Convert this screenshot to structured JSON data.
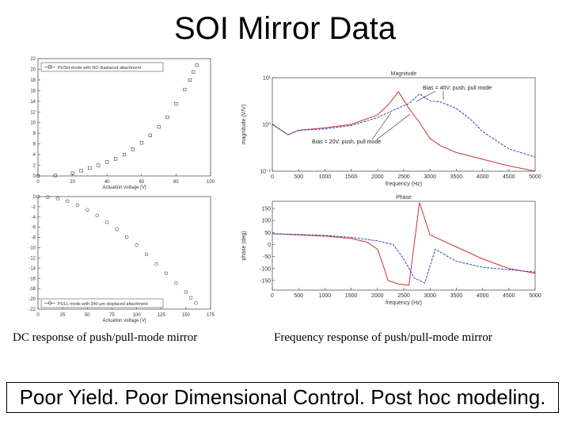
{
  "title": "SOI Mirror Data",
  "captions": {
    "left": "DC response of push/pull-mode mirror",
    "right": "Frequency response of push/pull-mode mirror"
  },
  "footer": "Poor Yield.  Poor Dimensional Control.  Post hoc modeling.",
  "chart_data": [
    {
      "type": "scatter",
      "legend": "PUSH mode with NO displaced attachment",
      "xlabel": "Actuation voltage [V]",
      "ylabel": "",
      "xlim": [
        0,
        100
      ],
      "ylim": [
        0,
        22
      ],
      "xticks": [
        0,
        20,
        40,
        60,
        80,
        100
      ],
      "yticks": [
        0,
        2,
        4,
        6,
        8,
        10,
        12,
        14,
        16,
        18,
        20,
        22
      ],
      "x": [
        0,
        10,
        20,
        25,
        30,
        35,
        40,
        45,
        50,
        55,
        60,
        65,
        70,
        75,
        80,
        85,
        88,
        90,
        92
      ],
      "y": [
        0,
        0.1,
        0.5,
        1.0,
        1.5,
        2.0,
        2.6,
        3.2,
        4.0,
        5.0,
        6.2,
        7.6,
        9.2,
        11.0,
        13.5,
        16.2,
        18.0,
        19.5,
        20.8
      ]
    },
    {
      "type": "scatter",
      "legend": "PULL mode with 340 μm displaced attachment",
      "xlabel": "Actuation voltage [V]",
      "ylabel": "",
      "xlim": [
        0,
        175
      ],
      "ylim": [
        -22,
        0
      ],
      "xticks": [
        0,
        25,
        50,
        75,
        100,
        125,
        150,
        175
      ],
      "yticks": [
        0,
        -2,
        -4,
        -6,
        -8,
        -10,
        -12,
        -14,
        -16,
        -18,
        -20,
        -22
      ],
      "x": [
        0,
        10,
        20,
        30,
        40,
        50,
        60,
        70,
        80,
        90,
        100,
        110,
        120,
        130,
        140,
        150,
        155,
        160
      ],
      "y": [
        0,
        -0.1,
        -0.4,
        -0.9,
        -1.7,
        -2.6,
        -3.7,
        -5.0,
        -6.4,
        -7.9,
        -9.5,
        -11.3,
        -13.2,
        -15.0,
        -16.9,
        -18.7,
        -19.8,
        -20.8
      ]
    },
    {
      "type": "line",
      "title": "Magnitude",
      "xlabel": "frequency (Hz)",
      "ylabel": "magnitude (V/V)",
      "yscale": "log",
      "xlim": [
        0,
        5000
      ],
      "ylim": [
        0.1,
        10
      ],
      "xticks": [
        0,
        500,
        1000,
        1500,
        2000,
        2500,
        3000,
        3500,
        4000,
        4500,
        5000
      ],
      "ytick_labels": [
        "10¹",
        "10⁰",
        "10⁻¹"
      ],
      "annotations": [
        "Bias = 40V: push, pull mode",
        "Bias = 20V: push, pull mode"
      ],
      "series": [
        {
          "color": "#d03030",
          "x": [
            0,
            300,
            500,
            1000,
            1500,
            2000,
            2200,
            2400,
            2600,
            2800,
            3000,
            3200,
            3500,
            4000,
            4500,
            5000
          ],
          "y": [
            1.0,
            0.6,
            0.75,
            0.85,
            1.0,
            1.6,
            2.6,
            5.0,
            2.2,
            1.1,
            0.5,
            0.35,
            0.25,
            0.18,
            0.13,
            0.1
          ]
        },
        {
          "color": "#3040c0",
          "x": [
            0,
            300,
            500,
            1000,
            1500,
            2000,
            2300,
            2600,
            2800,
            3000,
            3200,
            3500,
            3800,
            4000,
            4500,
            5000
          ],
          "y": [
            1.0,
            0.6,
            0.75,
            0.8,
            0.95,
            1.4,
            2.0,
            2.8,
            4.5,
            3.2,
            3.0,
            2.2,
            1.2,
            0.7,
            0.3,
            0.2
          ]
        }
      ]
    },
    {
      "type": "line",
      "title": "Phase",
      "xlabel": "frequency (Hz)",
      "ylabel": "phase (deg)",
      "xlim": [
        0,
        5000
      ],
      "ylim": [
        -190,
        180
      ],
      "xticks": [
        0,
        500,
        1000,
        1500,
        2000,
        2500,
        3000,
        3500,
        4000,
        4500,
        5000
      ],
      "yticks": [
        150,
        100,
        50,
        0,
        -50,
        -100,
        -150
      ],
      "series": [
        {
          "color": "#d03030",
          "x": [
            0,
            500,
            1000,
            1500,
            1800,
            2000,
            2100,
            2200,
            2400,
            2600,
            2800,
            3000,
            3500,
            4000,
            4500,
            5000
          ],
          "y": [
            45,
            40,
            35,
            25,
            10,
            -20,
            -80,
            -150,
            -165,
            -170,
            175,
            40,
            -10,
            -60,
            -100,
            -120
          ]
        },
        {
          "color": "#3040c0",
          "x": [
            0,
            500,
            1000,
            1500,
            2000,
            2300,
            2500,
            2700,
            2900,
            3100,
            3500,
            4000,
            4500,
            5000
          ],
          "y": [
            45,
            42,
            38,
            30,
            15,
            0,
            -60,
            -140,
            -160,
            -20,
            -70,
            -95,
            -105,
            -115
          ]
        }
      ]
    }
  ]
}
